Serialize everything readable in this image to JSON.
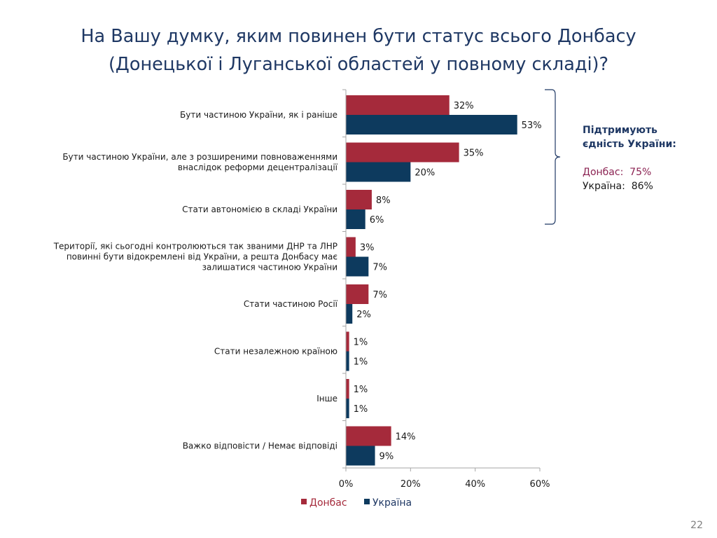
{
  "title": {
    "line1": "На Вашу думку, яким повинен бути статус всього Донбасу",
    "line2": "(Донецької і Луганської областей у повному складі)?"
  },
  "chart_data": {
    "type": "bar",
    "orientation": "horizontal",
    "categories": [
      [
        "Бути частиною України, як і раніше"
      ],
      [
        "Бути частиною України, але з розширеними повноваженнями",
        "внаслідок реформи децентралізації"
      ],
      [
        "Стати автономією в складі України"
      ],
      [
        "Території, які сьогодні контролюються так званими ДНР та ЛНР",
        "повинні бути відокремлені від України, а решта Донбасу має",
        "залишатися частиною України"
      ],
      [
        "Стати частиною Росії"
      ],
      [
        "Стати незалежною країною"
      ],
      [
        "Інше"
      ],
      [
        "Важко відповісти / Немає відповіді"
      ]
    ],
    "series": [
      {
        "name": "Донбас",
        "color": "#a52a3b",
        "values": [
          32,
          35,
          8,
          3,
          7,
          1,
          1,
          14
        ]
      },
      {
        "name": "Україна",
        "color": "#0d3a5e",
        "values": [
          53,
          20,
          6,
          7,
          2,
          1,
          1,
          9
        ]
      }
    ],
    "value_suffix": "%",
    "xlim": [
      0,
      60
    ],
    "xticks": [
      "0%",
      "20%",
      "40%",
      "60%"
    ],
    "grid": false,
    "legend_position": "bottom"
  },
  "side_note": {
    "heading_line1": "Підтримують",
    "heading_line2": "єдність України:",
    "donbas": "Донбас:  75%",
    "ukraine": "Україна:  86%",
    "donbas_color": "#8b2252",
    "ukraine_color": "#1a1a1a"
  },
  "page_number": "22"
}
